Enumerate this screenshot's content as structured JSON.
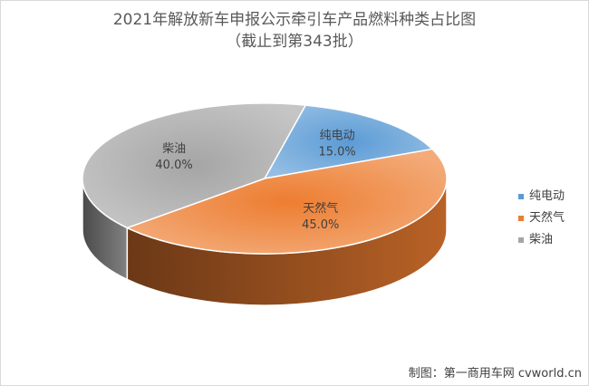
{
  "chart_data": {
    "type": "pie",
    "title": "2021年解放新车申报公示牵引车产品燃料种类占比图",
    "subtitle": "（截止到第343批）",
    "slices": [
      {
        "label": "纯电动",
        "value": 15.0,
        "value_label": "15.0%",
        "color": "#5b9bd5"
      },
      {
        "label": "天然气",
        "value": 45.0,
        "value_label": "45.0%",
        "color": "#ed7d31"
      },
      {
        "label": "柴油",
        "value": 40.0,
        "value_label": "40.0%",
        "color": "#a5a5a5"
      }
    ],
    "legend": {
      "position": "right"
    }
  },
  "footer": {
    "credit": "制图：第一商用车网 cvworld.cn"
  }
}
